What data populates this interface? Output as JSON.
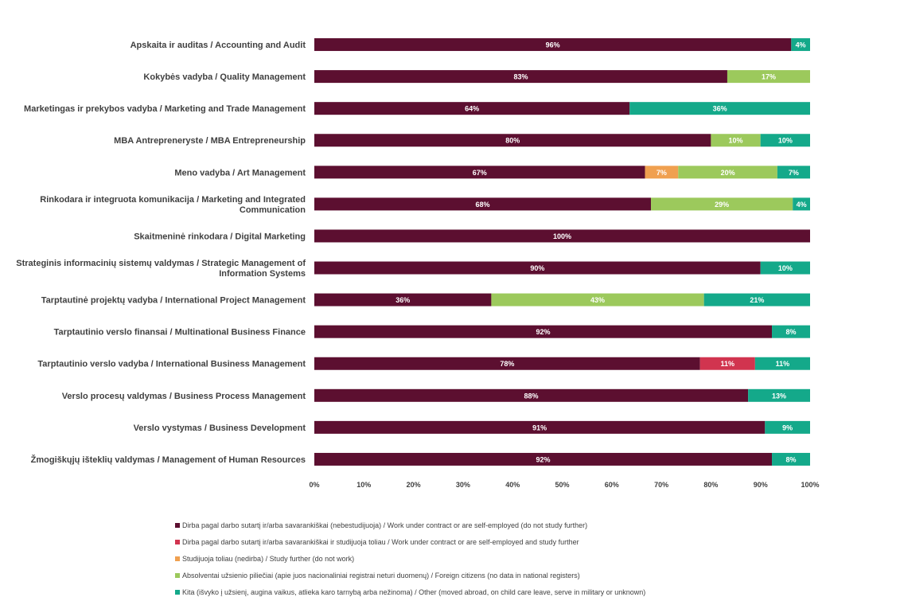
{
  "chart_data": {
    "type": "bar",
    "orientation": "horizontal",
    "stacked": true,
    "title": "",
    "xlabel": "",
    "ylabel": "",
    "xlim": [
      0,
      100
    ],
    "x_ticks": [
      "0%",
      "10%",
      "20%",
      "30%",
      "40%",
      "50%",
      "60%",
      "70%",
      "80%",
      "90%",
      "100%"
    ],
    "grid": false,
    "legend_position": "bottom",
    "categories": [
      [
        "Apskaita ir auditas / Accounting and Audit"
      ],
      [
        "Kokybės vadyba / Quality Management"
      ],
      [
        "Marketingas ir prekybos vadyba / Marketing and Trade Management"
      ],
      [
        "MBA Antrepreneryste / MBA Entrepreneurship"
      ],
      [
        "Meno vadyba / Art Management"
      ],
      [
        "Rinkodara ir integruota komunikacija / Marketing and Integrated",
        "Communication"
      ],
      [
        "Skaitmeninė rinkodara / Digital Marketing"
      ],
      [
        "Strateginis informacinių sistemų valdymas / Strategic Management of",
        "Information Systems"
      ],
      [
        "Tarptautinė projektų vadyba / International Project Management"
      ],
      [
        "Tarptautinio verslo finansai / Multinational Business Finance"
      ],
      [
        "Tarptautinio verslo vadyba / International Business Management"
      ],
      [
        "Verslo procesų valdymas / Business Process Management"
      ],
      [
        "Verslo vystymas / Business Development"
      ],
      [
        "Žmogiškųjų išteklių valdymas / Management of Human Resources"
      ]
    ],
    "series": [
      {
        "name": "Dirba pagal darbo sutartį ir/arba savarankiškai (nebestudijuoja) / Work under contract or are self-employed (do not study further)",
        "color": "#5c0f30",
        "values": [
          96.2,
          83.3,
          63.6,
          80,
          66.7,
          67.9,
          100,
          90,
          35.7,
          92.3,
          77.8,
          87.5,
          90.9,
          92.3
        ],
        "labels": [
          "96%",
          "83%",
          "64%",
          "80%",
          "67%",
          "68%",
          "100%",
          "90%",
          "36%",
          "92%",
          "78%",
          "88%",
          "91%",
          "92%"
        ]
      },
      {
        "name": "Dirba pagal darbo sutartį ir/arba savarankiškai  ir studijuoja toliau / Work under contract or are self-employed and study further",
        "color": "#d1344f",
        "values": [
          0,
          0,
          0,
          0,
          0,
          0,
          0,
          0,
          0,
          0,
          11.1,
          0,
          0,
          0
        ],
        "labels": [
          "",
          "",
          "",
          "",
          "",
          "",
          "",
          "",
          "",
          "",
          "11%",
          "",
          "",
          ""
        ]
      },
      {
        "name": "Studijuoja toliau (nedirba) / Study further (do not work)",
        "color": "#f0a050",
        "values": [
          0,
          0,
          0,
          0,
          6.7,
          0,
          0,
          0,
          0,
          0,
          0,
          0,
          0,
          0
        ],
        "labels": [
          "",
          "",
          "",
          "",
          "7%",
          "",
          "",
          "",
          "",
          "",
          "",
          "",
          "",
          ""
        ]
      },
      {
        "name": "Absolventai užsienio piliečiai (apie juos nacionaliniai registrai neturi duomenų) / Foreign citizens (no data in national registers)",
        "color": "#9cc95c",
        "values": [
          0,
          16.7,
          0,
          10,
          20,
          28.6,
          0,
          0,
          42.9,
          0,
          0,
          0,
          0,
          0
        ],
        "labels": [
          "",
          "17%",
          "",
          "10%",
          "20%",
          "29%",
          "",
          "",
          "43%",
          "",
          "",
          "",
          "",
          ""
        ]
      },
      {
        "name": "Kita (išvyko į užsienį, augina vaikus, atlieka karo tarnybą arba nežinoma) / Other (moved abroad, on child care leave, serve in military or unknown)",
        "color": "#14a98a",
        "values": [
          3.8,
          0,
          36.4,
          10,
          6.6,
          3.5,
          0,
          10,
          21.4,
          7.7,
          11.1,
          12.5,
          9.1,
          7.7
        ],
        "labels": [
          "4%",
          "",
          "36%",
          "10%",
          "7%",
          "4%",
          "",
          "10%",
          "21%",
          "8%",
          "11%",
          "13%",
          "9%",
          "8%"
        ]
      }
    ]
  }
}
